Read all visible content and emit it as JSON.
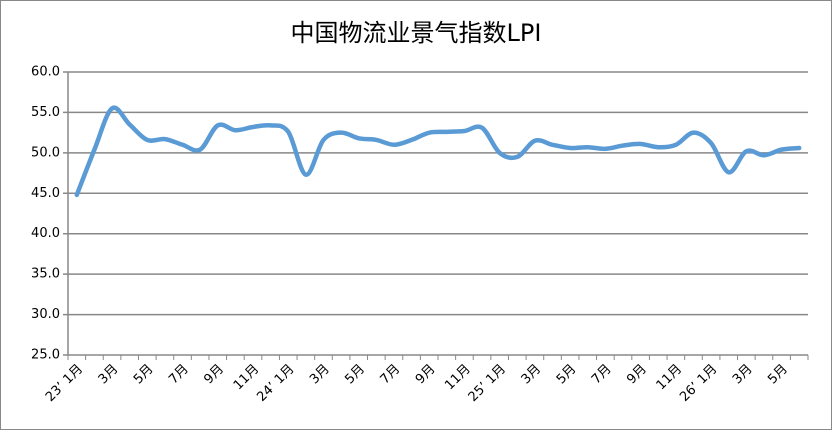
{
  "chart_data": {
    "type": "line",
    "title": "中国物流业景气指数LPI",
    "categories": [
      "23’ 1月",
      null,
      "3月",
      null,
      "5月",
      null,
      "7月",
      null,
      "9月",
      null,
      "11月",
      null,
      "24’ 1月",
      null,
      "3月",
      null,
      "5月",
      null,
      "7月",
      null,
      "9月",
      null,
      "11月",
      null,
      "25’ 1月",
      null,
      "3月",
      null,
      "5月",
      null,
      "7月",
      null,
      "9月",
      null,
      "11月",
      null,
      "26’ 1月",
      null,
      "3月",
      null,
      "5月",
      null
    ],
    "series": [
      {
        "name": "LPI",
        "color": "#5b9bd5",
        "values": [
          44.8,
          50.4,
          55.5,
          53.5,
          51.6,
          51.7,
          51.0,
          50.4,
          53.4,
          52.8,
          53.2,
          53.4,
          52.6,
          47.3,
          51.6,
          52.5,
          51.8,
          51.6,
          51.0,
          51.6,
          52.5,
          52.6,
          52.7,
          53.1,
          50.0,
          49.5,
          51.5,
          51.0,
          50.6,
          50.7,
          50.5,
          50.9,
          51.1,
          50.7,
          51.0,
          52.5,
          51.2,
          47.6,
          50.2,
          49.7,
          50.4,
          50.6
        ]
      }
    ],
    "ylim": [
      25,
      60
    ],
    "yticks": [
      {
        "value": 25,
        "label": "25.0"
      },
      {
        "value": 30,
        "label": "30.0"
      },
      {
        "value": 35,
        "label": "35.0"
      },
      {
        "value": 40,
        "label": "40.0"
      },
      {
        "value": 45,
        "label": "45.0"
      },
      {
        "value": 50,
        "label": "50.0"
      },
      {
        "value": 55,
        "label": "55.0"
      },
      {
        "value": 60,
        "label": "60.0"
      }
    ],
    "grid": true
  }
}
